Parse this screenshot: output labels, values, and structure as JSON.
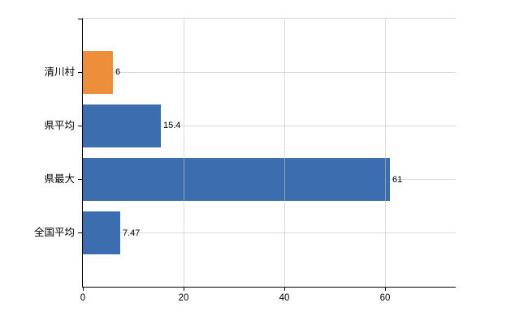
{
  "chart_data": {
    "type": "bar",
    "orientation": "horizontal",
    "title": "",
    "xlabel": "",
    "ylabel": "",
    "categories": [
      "清川村",
      "県平均",
      "県最大",
      "全国平均"
    ],
    "values": [
      6,
      15.4,
      61,
      7.47
    ],
    "value_labels": [
      "6",
      "15.4",
      "61",
      "7.47"
    ],
    "bar_colors": [
      "#ED8F3A",
      "#3C6DAF",
      "#3C6DAF",
      "#3C6DAF"
    ],
    "xticks": [
      0,
      20,
      40,
      60
    ],
    "xtick_labels": [
      "0",
      "20",
      "40",
      "60"
    ],
    "xlim": [
      0,
      74
    ],
    "grid": true,
    "legend": "none",
    "colors": {
      "axis": "#000000",
      "grid": "#d9d9d9",
      "plot_border_top": "#d4d4d4",
      "background": "#ffffff",
      "text": "#000000"
    }
  }
}
